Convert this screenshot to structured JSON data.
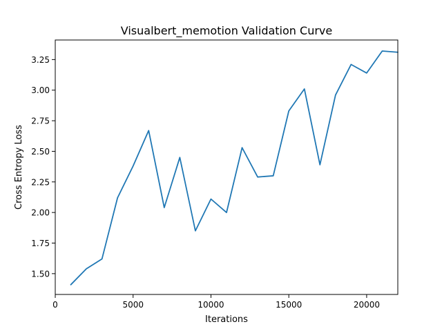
{
  "chart_data": {
    "type": "line",
    "title": "Visualbert_memotion Validation Curve",
    "xlabel": "Iterations",
    "ylabel": "Cross Entropy Loss",
    "xlim": [
      0,
      22000
    ],
    "ylim": [
      1.33,
      3.41
    ],
    "xticks": [
      0,
      5000,
      10000,
      15000,
      20000
    ],
    "xtick_labels": [
      "0",
      "5000",
      "10000",
      "15000",
      "20000"
    ],
    "yticks": [
      1.5,
      1.75,
      2.0,
      2.25,
      2.5,
      2.75,
      3.0,
      3.25
    ],
    "ytick_labels": [
      "1.50",
      "1.75",
      "2.00",
      "2.25",
      "2.50",
      "2.75",
      "3.00",
      "3.25"
    ],
    "grid": false,
    "color": "#1f77b4",
    "x": [
      1000,
      2000,
      3000,
      4000,
      5000,
      6000,
      7000,
      8000,
      9000,
      10000,
      11000,
      12000,
      13000,
      14000,
      15000,
      16000,
      17000,
      18000,
      19000,
      20000,
      21000,
      22000
    ],
    "values": [
      1.41,
      1.54,
      1.62,
      2.12,
      2.38,
      2.67,
      2.04,
      2.45,
      1.85,
      2.11,
      2.0,
      2.53,
      2.29,
      2.3,
      2.83,
      3.01,
      2.39,
      2.96,
      3.21,
      3.14,
      3.32,
      3.31
    ]
  }
}
